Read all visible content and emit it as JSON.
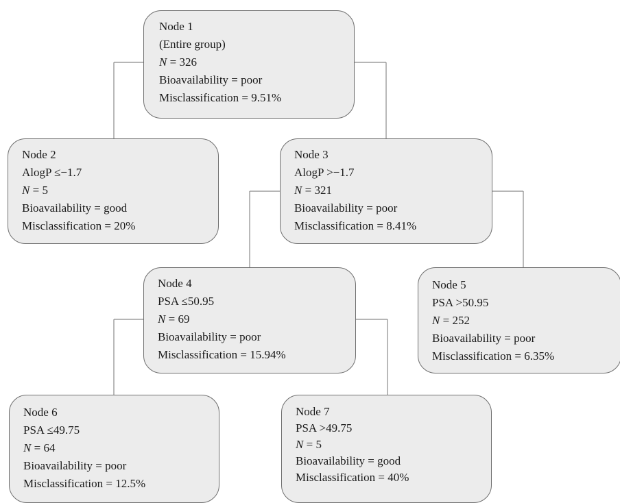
{
  "nodes": [
    {
      "title": "Node 1",
      "lines": [
        "(Entire group)"
      ],
      "n": "326",
      "bioavailability": "poor",
      "misclassification": "9.51%"
    },
    {
      "title": "Node 2",
      "lines": [
        "AlogP ≤−1.7"
      ],
      "n": "5",
      "bioavailability": "good",
      "misclassification": "20%"
    },
    {
      "title": "Node 3",
      "lines": [
        "AlogP >−1.7"
      ],
      "n": "321",
      "bioavailability": "poor",
      "misclassification": "8.41%"
    },
    {
      "title": "Node 4",
      "lines": [
        "PSA ≤50.95"
      ],
      "n": "69",
      "bioavailability": "poor",
      "misclassification": "15.94%"
    },
    {
      "title": "Node 5",
      "lines": [
        "PSA >50.95"
      ],
      "n": "252",
      "bioavailability": "poor",
      "misclassification": "6.35%"
    },
    {
      "title": "Node 6",
      "lines": [
        "PSA ≤49.75"
      ],
      "n": "64",
      "bioavailability": "poor",
      "misclassification": "12.5%"
    },
    {
      "title": "Node 7",
      "lines": [
        "PSA >49.75"
      ],
      "n": "5",
      "bioavailability": "good",
      "misclassification": "40%"
    }
  ],
  "labels": {
    "n_symbol": "N",
    "n_equals": " = ",
    "bioavailability_prefix": "Bioavailability = ",
    "misclassification_prefix": "Misclassification = "
  }
}
